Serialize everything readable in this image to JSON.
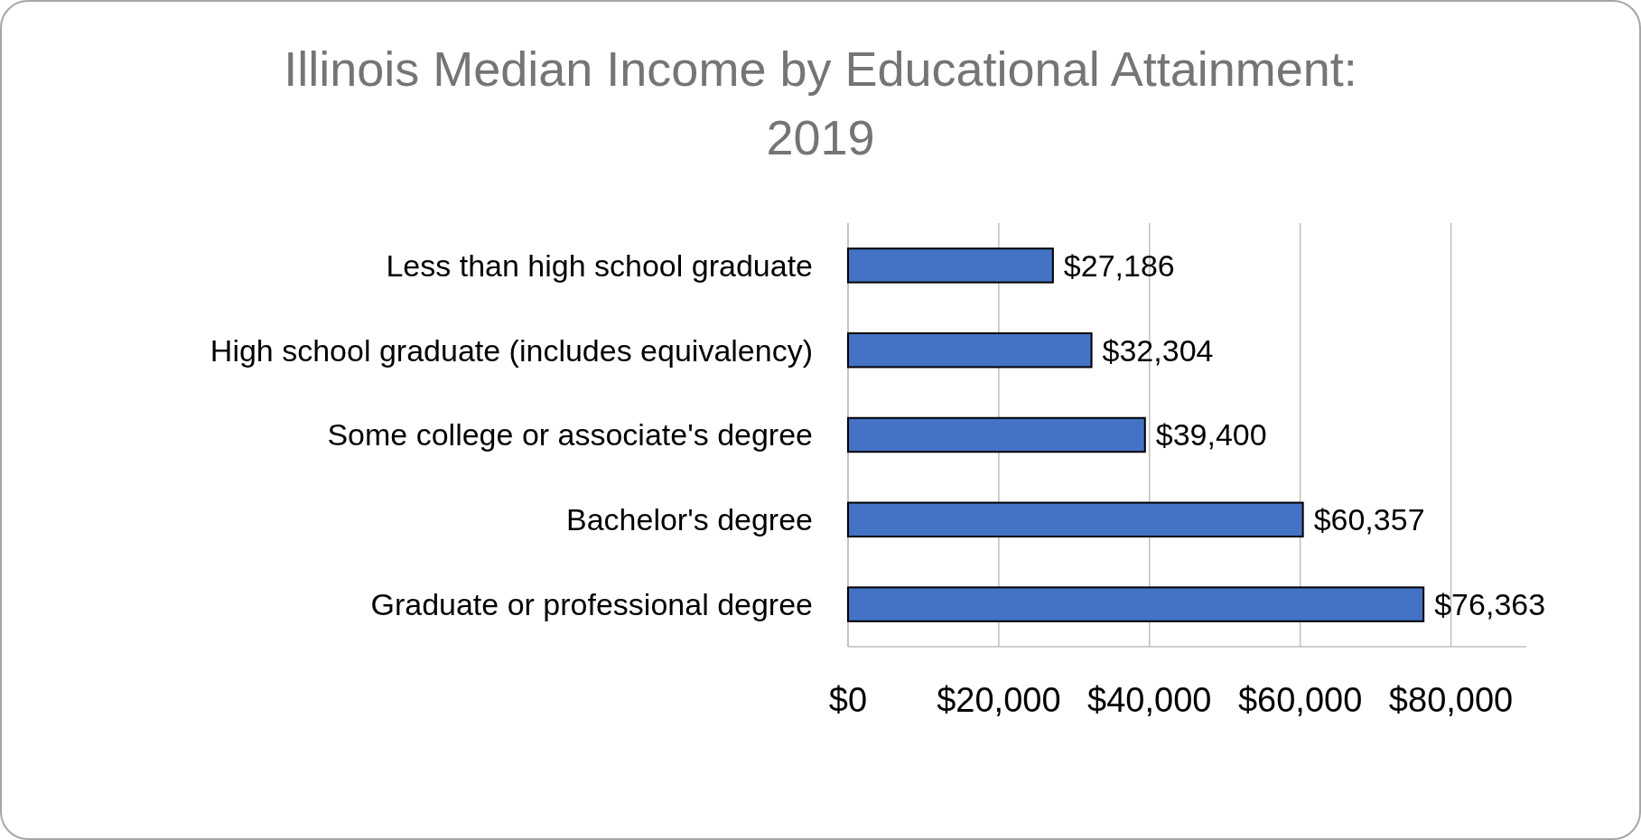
{
  "chart_data": {
    "type": "bar",
    "orientation": "horizontal",
    "title": "Illinois Median Income by Educational Attainment: 2019",
    "categories": [
      "Less than high school graduate",
      "High school graduate (includes equivalency)",
      "Some college or associate's degree",
      "Bachelor's degree",
      "Graduate or professional degree"
    ],
    "values": [
      27186,
      32304,
      39400,
      60357,
      76363
    ],
    "value_labels": [
      "$27,186",
      "$32,304",
      "$39,400",
      "$60,357",
      "$76,363"
    ],
    "color": "#4472c4",
    "xlim": [
      0,
      90000
    ],
    "xticks": [
      {
        "value": 0,
        "label": "$0"
      },
      {
        "value": 20000,
        "label": "$20,000"
      },
      {
        "value": 40000,
        "label": "$40,000"
      },
      {
        "value": 60000,
        "label": "$60,000"
      },
      {
        "value": 80000,
        "label": "$80,000"
      }
    ],
    "grid": "x"
  }
}
